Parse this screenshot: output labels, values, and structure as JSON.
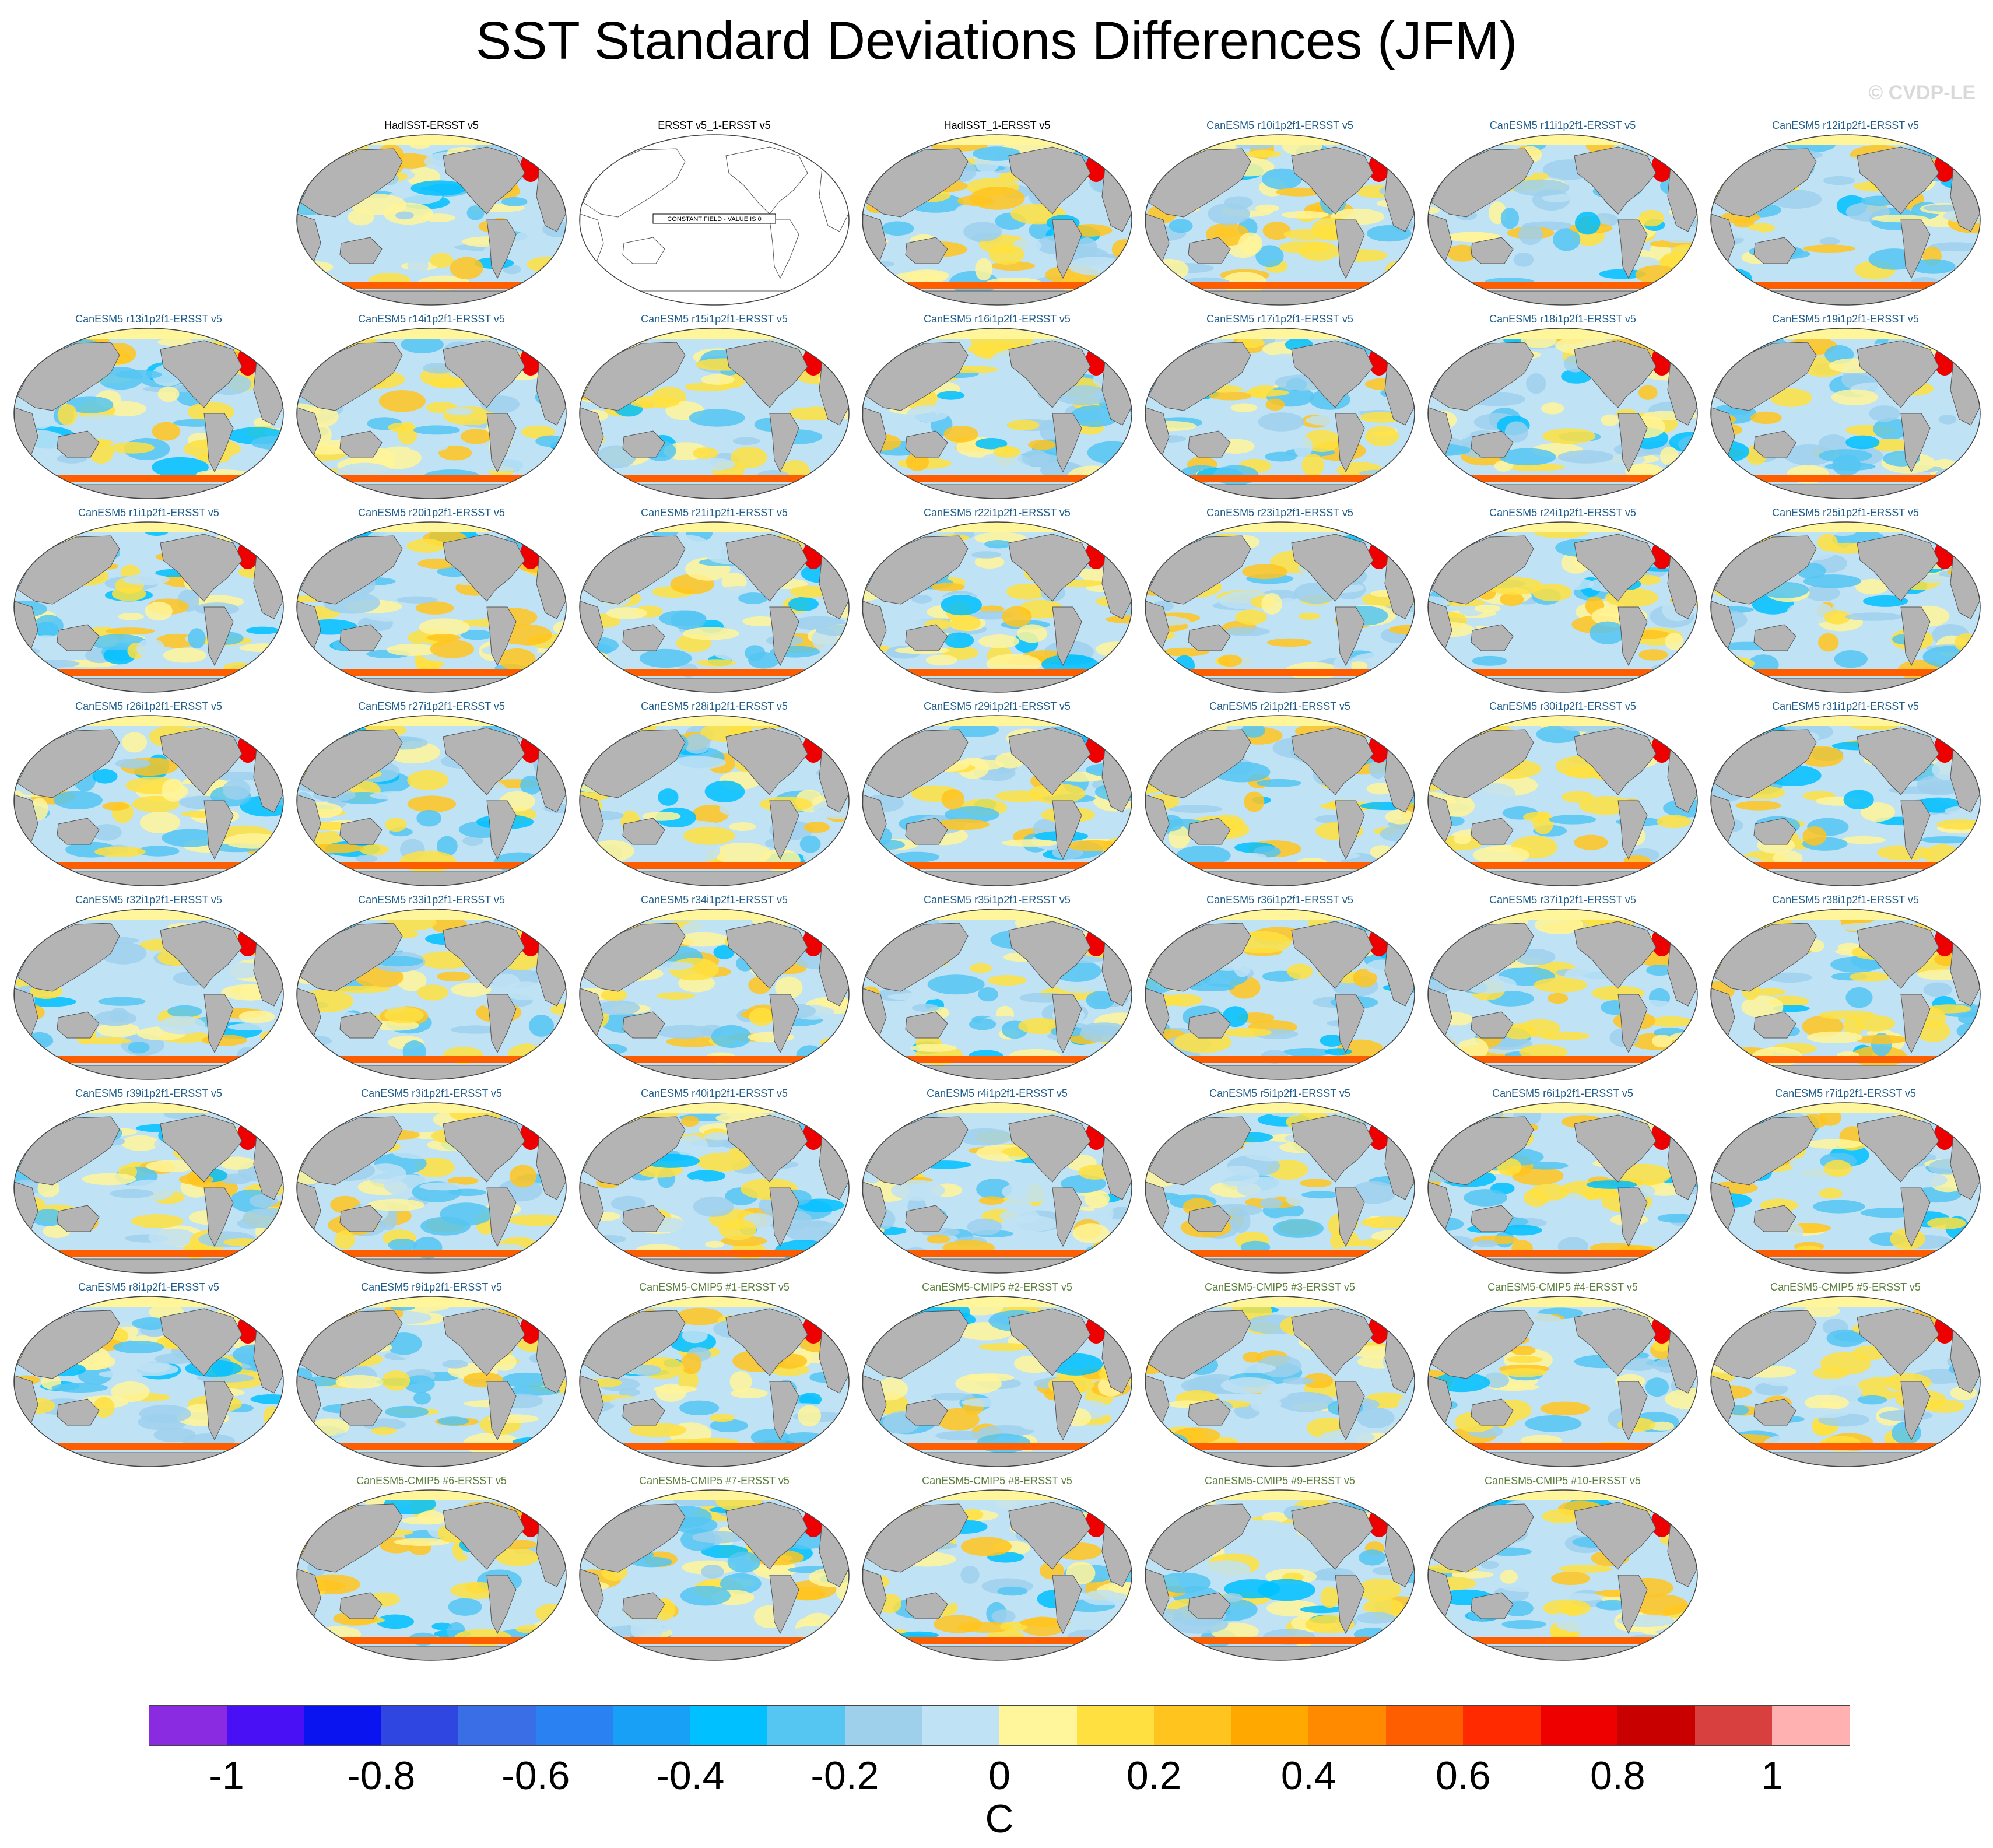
{
  "title": "SST Standard Deviations Differences (JFM)",
  "watermark": "© CVDP-LE",
  "map_type": "global SST std-dev difference maps, Robinson-style projection, Pacific-centered",
  "panels": [
    {
      "title": "HadISST-ERSST v5",
      "kind": "obs"
    },
    {
      "title": "ERSST v5_1-ERSST v5",
      "kind": "obs",
      "note": "CONSTANT FIELD - VALUE IS 0"
    },
    {
      "title": "HadISST_1-ERSST v5",
      "kind": "obs"
    },
    {
      "title": "CanESM5 r10i1p2f1-ERSST v5",
      "kind": "le"
    },
    {
      "title": "CanESM5 r11i1p2f1-ERSST v5",
      "kind": "le"
    },
    {
      "title": "CanESM5 r12i1p2f1-ERSST v5",
      "kind": "le"
    },
    {
      "title": "CanESM5 r13i1p2f1-ERSST v5",
      "kind": "le"
    },
    {
      "title": "CanESM5 r14i1p2f1-ERSST v5",
      "kind": "le"
    },
    {
      "title": "CanESM5 r15i1p2f1-ERSST v5",
      "kind": "le"
    },
    {
      "title": "CanESM5 r16i1p2f1-ERSST v5",
      "kind": "le"
    },
    {
      "title": "CanESM5 r17i1p2f1-ERSST v5",
      "kind": "le"
    },
    {
      "title": "CanESM5 r18i1p2f1-ERSST v5",
      "kind": "le"
    },
    {
      "title": "CanESM5 r19i1p2f1-ERSST v5",
      "kind": "le"
    },
    {
      "title": "CanESM5 r1i1p2f1-ERSST v5",
      "kind": "le"
    },
    {
      "title": "CanESM5 r20i1p2f1-ERSST v5",
      "kind": "le"
    },
    {
      "title": "CanESM5 r21i1p2f1-ERSST v5",
      "kind": "le"
    },
    {
      "title": "CanESM5 r22i1p2f1-ERSST v5",
      "kind": "le"
    },
    {
      "title": "CanESM5 r23i1p2f1-ERSST v5",
      "kind": "le"
    },
    {
      "title": "CanESM5 r24i1p2f1-ERSST v5",
      "kind": "le"
    },
    {
      "title": "CanESM5 r25i1p2f1-ERSST v5",
      "kind": "le"
    },
    {
      "title": "CanESM5 r26i1p2f1-ERSST v5",
      "kind": "le"
    },
    {
      "title": "CanESM5 r27i1p2f1-ERSST v5",
      "kind": "le"
    },
    {
      "title": "CanESM5 r28i1p2f1-ERSST v5",
      "kind": "le"
    },
    {
      "title": "CanESM5 r29i1p2f1-ERSST v5",
      "kind": "le"
    },
    {
      "title": "CanESM5 r2i1p2f1-ERSST v5",
      "kind": "le"
    },
    {
      "title": "CanESM5 r30i1p2f1-ERSST v5",
      "kind": "le"
    },
    {
      "title": "CanESM5 r31i1p2f1-ERSST v5",
      "kind": "le"
    },
    {
      "title": "CanESM5 r32i1p2f1-ERSST v5",
      "kind": "le"
    },
    {
      "title": "CanESM5 r33i1p2f1-ERSST v5",
      "kind": "le"
    },
    {
      "title": "CanESM5 r34i1p2f1-ERSST v5",
      "kind": "le"
    },
    {
      "title": "CanESM5 r35i1p2f1-ERSST v5",
      "kind": "le"
    },
    {
      "title": "CanESM5 r36i1p2f1-ERSST v5",
      "kind": "le"
    },
    {
      "title": "CanESM5 r37i1p2f1-ERSST v5",
      "kind": "le"
    },
    {
      "title": "CanESM5 r38i1p2f1-ERSST v5",
      "kind": "le"
    },
    {
      "title": "CanESM5 r39i1p2f1-ERSST v5",
      "kind": "le"
    },
    {
      "title": "CanESM5 r3i1p2f1-ERSST v5",
      "kind": "le"
    },
    {
      "title": "CanESM5 r40i1p2f1-ERSST v5",
      "kind": "le"
    },
    {
      "title": "CanESM5 r4i1p2f1-ERSST v5",
      "kind": "le"
    },
    {
      "title": "CanESM5 r5i1p2f1-ERSST v5",
      "kind": "le"
    },
    {
      "title": "CanESM5 r6i1p2f1-ERSST v5",
      "kind": "le"
    },
    {
      "title": "CanESM5 r7i1p2f1-ERSST v5",
      "kind": "le"
    },
    {
      "title": "CanESM5 r8i1p2f1-ERSST v5",
      "kind": "le"
    },
    {
      "title": "CanESM5 r9i1p2f1-ERSST v5",
      "kind": "le"
    },
    {
      "title": "CanESM5-CMIP5 #1-ERSST v5",
      "kind": "cmip"
    },
    {
      "title": "CanESM5-CMIP5 #2-ERSST v5",
      "kind": "cmip"
    },
    {
      "title": "CanESM5-CMIP5 #3-ERSST v5",
      "kind": "cmip"
    },
    {
      "title": "CanESM5-CMIP5 #4-ERSST v5",
      "kind": "cmip"
    },
    {
      "title": "CanESM5-CMIP5 #5-ERSST v5",
      "kind": "cmip"
    },
    {
      "title": "CanESM5-CMIP5 #6-ERSST v5",
      "kind": "cmip"
    },
    {
      "title": "CanESM5-CMIP5 #7-ERSST v5",
      "kind": "cmip"
    },
    {
      "title": "CanESM5-CMIP5 #8-ERSST v5",
      "kind": "cmip"
    },
    {
      "title": "CanESM5-CMIP5 #9-ERSST v5",
      "kind": "cmip"
    },
    {
      "title": "CanESM5-CMIP5 #10-ERSST v5",
      "kind": "cmip"
    }
  ],
  "colorbar": {
    "unit": "C",
    "range": [
      -1.1,
      1.1
    ],
    "colors": [
      "#8a2be2",
      "#4a10f5",
      "#0a14f0",
      "#2f46e0",
      "#3a6ee6",
      "#2a82f2",
      "#17a0f5",
      "#00c0ff",
      "#55c5f2",
      "#9ed0ec",
      "#c0e2f5",
      "#fff59a",
      "#ffe040",
      "#ffc41e",
      "#ffa800",
      "#ff8a00",
      "#ff5e00",
      "#ff2a00",
      "#ee0000",
      "#c80000",
      "#d84040",
      "#ffb0b0"
    ],
    "tick_labels": [
      "-1",
      "-0.8",
      "-0.6",
      "-0.4",
      "-0.2",
      "0",
      "0.2",
      "0.4",
      "0.6",
      "0.8",
      "1"
    ],
    "tick_values": [
      -1,
      -0.8,
      -0.6,
      -0.4,
      -0.2,
      0,
      0.2,
      0.4,
      0.6,
      0.8,
      1
    ]
  },
  "colors": {
    "land": "#b4b4b4",
    "obs_title": "#000000",
    "le_title": "#1f5e8c",
    "cmip_title": "#5b7f3c"
  }
}
